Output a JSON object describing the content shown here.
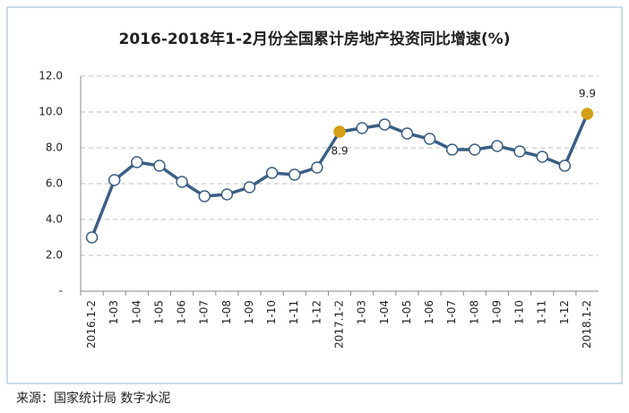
{
  "chart_data": {
    "type": "line",
    "title": "2016-2018年1-2月份全国累计房地产投资同比增速(%)",
    "categories": [
      "2016.1-2",
      "1-03",
      "1-04",
      "1-05",
      "1-06",
      "1-07",
      "1-08",
      "1-09",
      "1-10",
      "1-11",
      "1-12",
      "2017.1-2",
      "1-03",
      "1-04",
      "1-05",
      "1-06",
      "1-07",
      "1-08",
      "1-09",
      "1-10",
      "1-11",
      "1-12",
      "2018.1-2"
    ],
    "values": [
      3.0,
      6.2,
      7.2,
      7.0,
      6.1,
      5.3,
      5.4,
      5.8,
      6.6,
      6.5,
      6.9,
      8.9,
      9.1,
      9.3,
      8.8,
      8.5,
      7.9,
      7.9,
      8.1,
      7.8,
      7.5,
      7.0,
      9.9
    ],
    "value_labels": [
      null,
      null,
      null,
      null,
      null,
      null,
      null,
      null,
      null,
      null,
      null,
      "8.9",
      null,
      null,
      null,
      null,
      null,
      null,
      null,
      null,
      null,
      null,
      "9.9"
    ],
    "color": "#3b5f86",
    "point_colors": [
      "#ffffff",
      "#ffffff",
      "#ffffff",
      "#ffffff",
      "#ffffff",
      "#ffffff",
      "#ffffff",
      "#ffffff",
      "#ffffff",
      "#ffffff",
      "#ffffff",
      "#d4a017",
      "#ffffff",
      "#ffffff",
      "#ffffff",
      "#ffffff",
      "#ffffff",
      "#ffffff",
      "#ffffff",
      "#ffffff",
      "#ffffff",
      "#ffffff",
      "#d4a017"
    ],
    "ylim": [
      0,
      12
    ],
    "yticks": [
      {
        "value": 0,
        "label": "-"
      },
      {
        "value": 2,
        "label": "2.0"
      },
      {
        "value": 4,
        "label": "4.0"
      },
      {
        "value": 6,
        "label": "6.0"
      },
      {
        "value": 8,
        "label": "8.0"
      },
      {
        "value": 10,
        "label": "10.0"
      },
      {
        "value": 12,
        "label": "12.0"
      }
    ],
    "grid": true,
    "source": "来源：国家统计局  数字水泥"
  }
}
